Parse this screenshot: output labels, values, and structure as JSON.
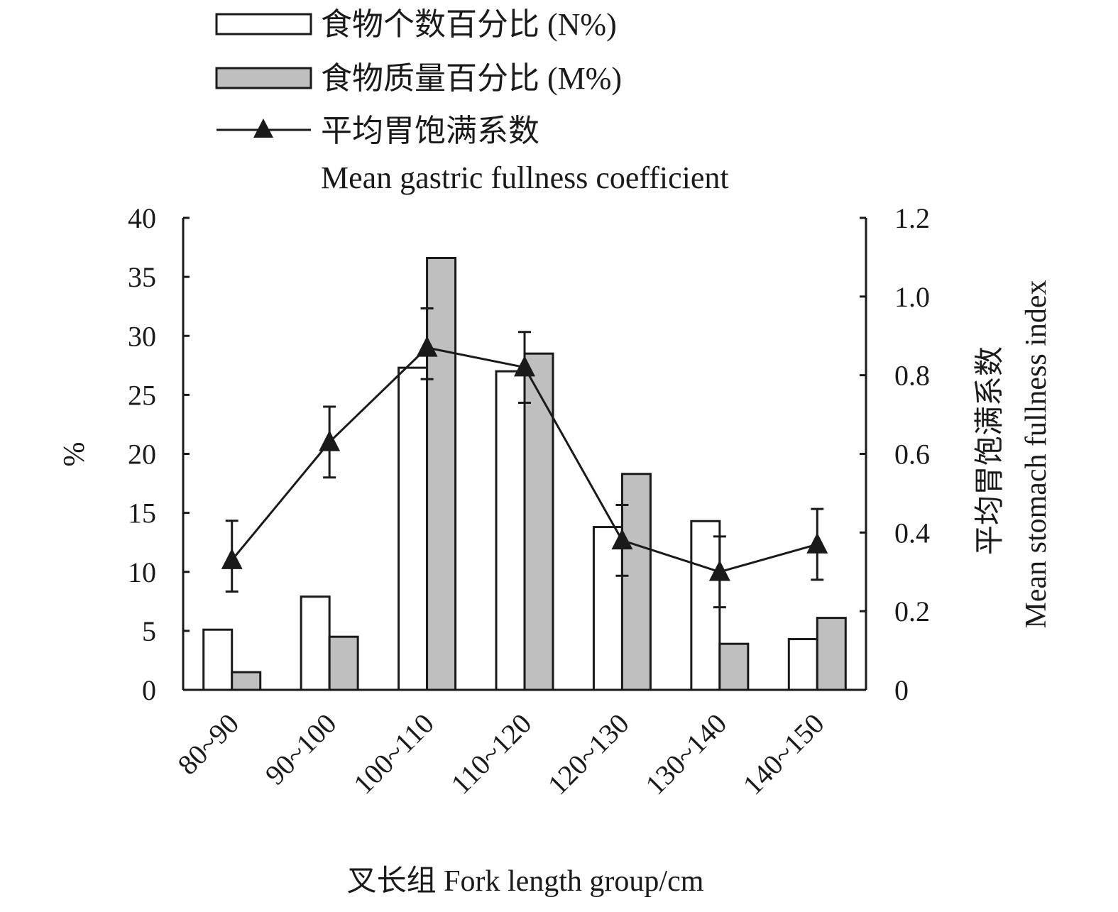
{
  "chart_data": {
    "type": "bar",
    "categories": [
      "80~90",
      "90~100",
      "100~110",
      "110~120",
      "120~130",
      "130~140",
      "140~150"
    ],
    "series": [
      {
        "name": "食物个数百分比 (N%)",
        "type": "bar",
        "axis": "left",
        "color": "#ffffff",
        "values": [
          5.1,
          7.9,
          27.3,
          27.0,
          13.8,
          14.3,
          4.3
        ]
      },
      {
        "name": "食物质量百分比 (M%)",
        "type": "bar",
        "axis": "left",
        "color": "#bfbfbf",
        "values": [
          1.5,
          4.5,
          36.6,
          28.5,
          18.3,
          3.9,
          6.1
        ]
      },
      {
        "name": "平均胃饱满系数",
        "name_en": "Mean gastric fullness coefficient",
        "type": "line",
        "marker": "triangle",
        "axis": "right",
        "color": "#1a1a1a",
        "values": [
          0.33,
          0.63,
          0.87,
          0.82,
          0.38,
          0.3,
          0.37
        ],
        "error_low": [
          0.25,
          0.54,
          0.79,
          0.73,
          0.29,
          0.21,
          0.28
        ],
        "error_high": [
          0.43,
          0.72,
          0.97,
          0.91,
          0.47,
          0.39,
          0.46
        ]
      }
    ],
    "ylabel": "%",
    "y2label_cn": "平均胃饱满系数",
    "y2label_en": "Mean stomach fullness index",
    "xlabel": "叉长组  Fork length group/cm",
    "ylim": [
      0,
      40
    ],
    "yticks": [
      0,
      5,
      10,
      15,
      20,
      25,
      30,
      35,
      40
    ],
    "y2lim": [
      0,
      1.2
    ],
    "y2ticks": [
      "0",
      "0.2",
      "0.4",
      "0.6",
      "0.8",
      "1.0",
      "1.2"
    ],
    "legend_position": "top",
    "grid": false
  }
}
